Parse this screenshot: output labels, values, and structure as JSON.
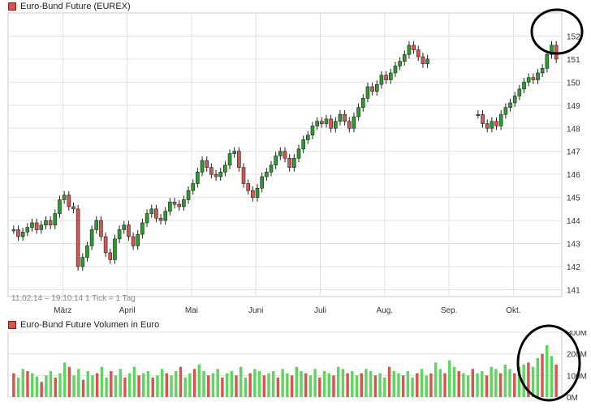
{
  "chart_data": [
    {
      "type": "candlestick",
      "title": "Euro-Bund Future (EUREX)",
      "date_range_label": "11.02.14 – 19.10.14",
      "tick_note": "1 Tick = 1 Tag",
      "month_labels": [
        "März",
        "April",
        "Mai",
        "Juni",
        "Juli",
        "Aug.",
        "Sep.",
        "Okt."
      ],
      "ylim": [
        140.7,
        153.0
      ],
      "y_ticks": [
        141,
        142,
        143,
        144,
        145,
        146,
        147,
        148,
        149,
        150,
        151,
        152
      ],
      "grid": true,
      "up_color": "#2e9a2e",
      "down_color": "#d9534f",
      "close_series": [
        143.6,
        143.3,
        143.5,
        143.7,
        143.9,
        143.6,
        143.8,
        144.0,
        143.8,
        144.3,
        144.9,
        145.1,
        144.6,
        144.5,
        142.0,
        142.4,
        142.9,
        143.6,
        144.0,
        143.3,
        142.6,
        142.3,
        143.2,
        143.6,
        143.8,
        143.3,
        142.9,
        143.4,
        143.9,
        144.3,
        144.5,
        144.1,
        144.0,
        144.4,
        144.8,
        144.7,
        144.6,
        144.9,
        145.3,
        145.6,
        146.1,
        146.6,
        146.3,
        146.0,
        145.9,
        146.1,
        146.4,
        146.9,
        147.0,
        146.3,
        145.6,
        145.3,
        145.0,
        145.4,
        145.9,
        146.1,
        146.4,
        146.8,
        147.0,
        146.7,
        146.3,
        146.7,
        147.1,
        147.5,
        147.7,
        148.1,
        148.3,
        148.2,
        148.4,
        148.0,
        148.3,
        148.6,
        148.3,
        148.0,
        148.5,
        148.9,
        149.3,
        149.8,
        149.6,
        149.9,
        150.3,
        150.1,
        150.4,
        150.7,
        150.9,
        151.2,
        151.6,
        151.4,
        151.1,
        150.8,
        151.0,
        null,
        null,
        null,
        null,
        null,
        null,
        null,
        null,
        null,
        null,
        148.6,
        148.2,
        148.0,
        148.3,
        148.1,
        148.6,
        148.9,
        149.1,
        149.4,
        149.7,
        150.0,
        150.2,
        150.1,
        150.4,
        150.6,
        151.2,
        151.6,
        151.0
      ],
      "volume": {
        "title": "Euro-Bund Future Volumen in Euro",
        "y_ticks": [
          "0M",
          "100M",
          "200M",
          "300M"
        ],
        "ylim_millions": [
          0,
          300
        ],
        "values_millions": [
          110,
          90,
          130,
          120,
          110,
          95,
          70,
          100,
          120,
          90,
          110,
          160,
          140,
          100,
          130,
          80,
          120,
          100,
          110,
          140,
          90,
          120,
          100,
          130,
          90,
          110,
          140,
          100,
          110,
          120,
          90,
          100,
          130,
          110,
          100,
          120,
          140,
          90,
          110,
          130,
          150,
          120,
          100,
          110,
          130,
          90,
          110,
          120,
          100,
          140,
          90,
          110,
          130,
          120,
          100,
          110,
          120,
          90,
          130,
          110,
          100,
          140,
          120,
          110,
          100,
          130,
          90,
          120,
          110,
          100,
          140,
          130,
          110,
          120,
          100,
          110,
          130,
          120,
          100,
          110,
          90,
          140,
          120,
          110,
          100,
          120,
          90,
          110,
          130,
          100,
          110,
          160,
          130,
          110,
          170,
          140,
          120,
          110,
          100,
          130,
          110,
          120,
          100,
          140,
          130,
          110,
          150,
          130,
          110,
          140,
          150,
          160,
          140,
          180,
          200,
          240,
          190,
          150
        ]
      }
    }
  ]
}
